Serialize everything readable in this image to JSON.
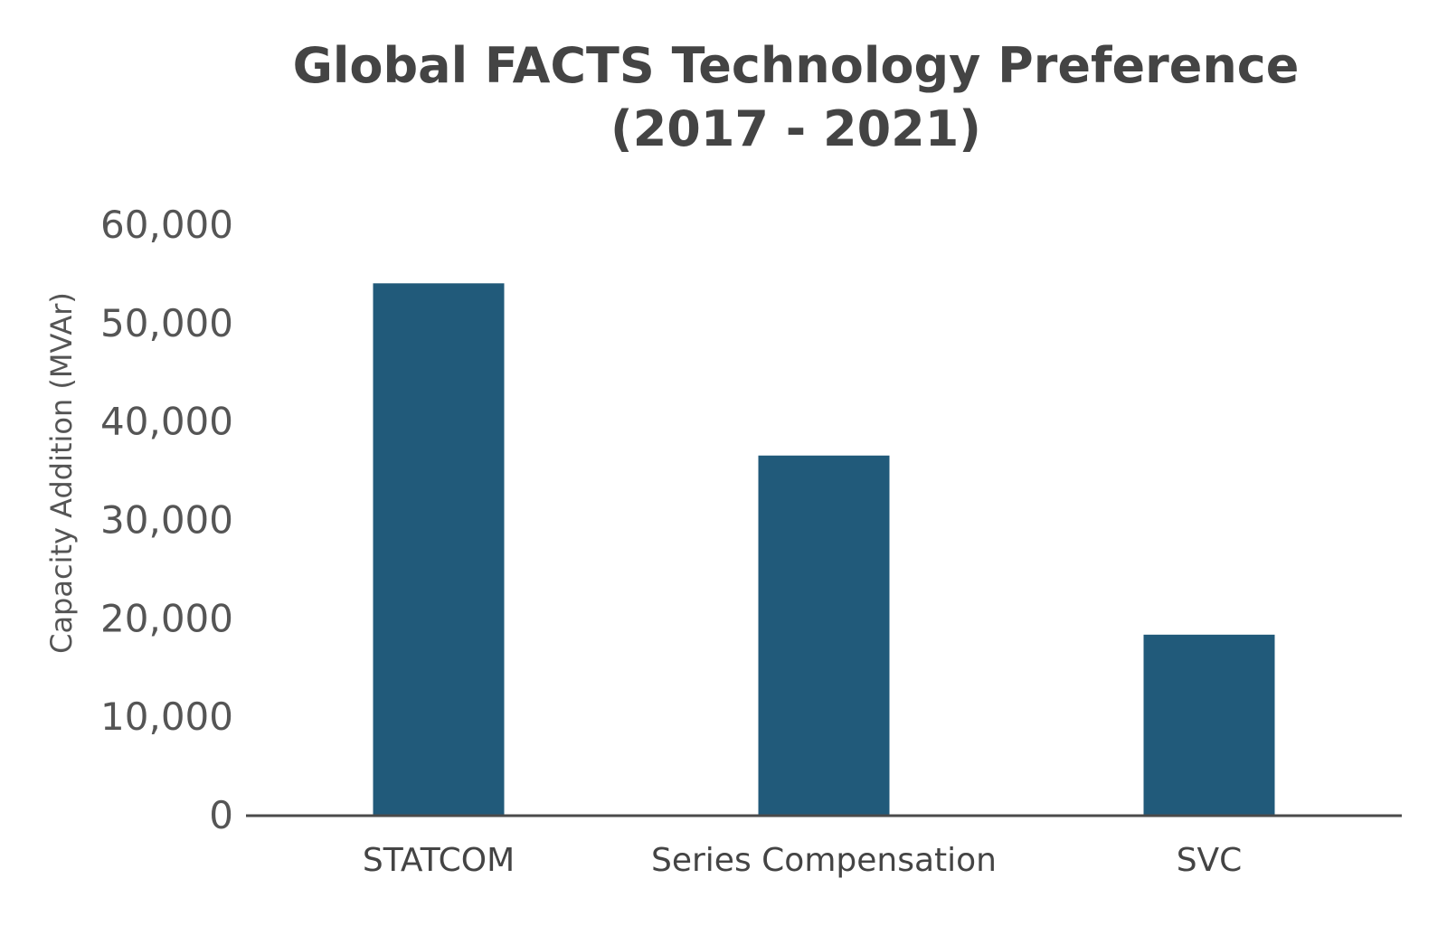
{
  "chart_data": {
    "type": "bar",
    "title": [
      "Global FACTS Technology Preference",
      "(2017 - 2021)"
    ],
    "xlabel": "",
    "ylabel": "Capacity Addition (MVAr)",
    "categories": [
      "STATCOM",
      "Series Compensation",
      "SVC"
    ],
    "values": [
      54000,
      36500,
      18300
    ],
    "ylim": [
      0,
      60000
    ],
    "yticks": [
      "0",
      "10,000",
      "20,000",
      "30,000",
      "40,000",
      "50,000",
      "60,000"
    ],
    "ytick_values": [
      0,
      10000,
      20000,
      30000,
      40000,
      50000,
      60000
    ],
    "grid": false,
    "legend": "none",
    "colors": {
      "bar": "#215a7a",
      "axis": "#4a4a4a",
      "text": "#444444"
    }
  }
}
